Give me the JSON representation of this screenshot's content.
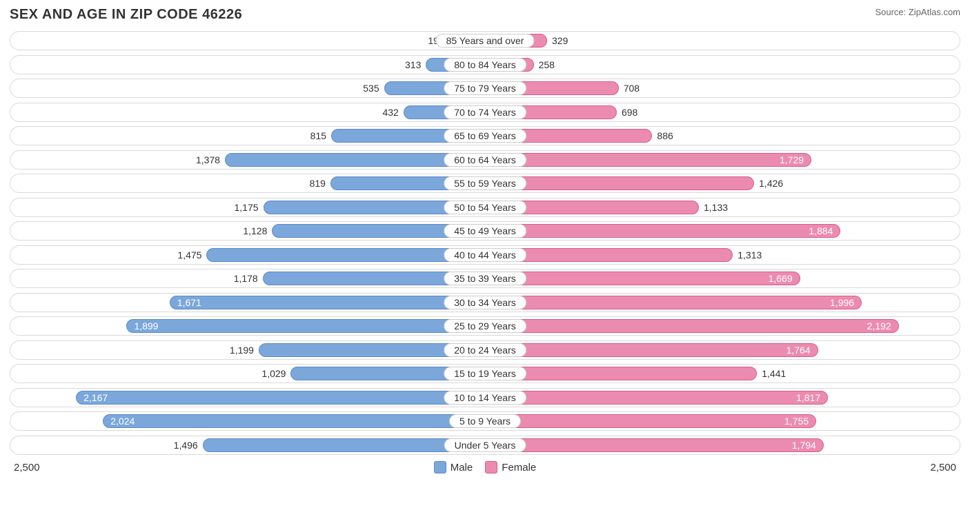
{
  "title": "SEX AND AGE IN ZIP CODE 46226",
  "source": "Source: ZipAtlas.com",
  "chart": {
    "type": "population-pyramid",
    "max_value": 2500,
    "axis_label_left": "2,500",
    "axis_label_right": "2,500",
    "male_color": "#7ba7db",
    "male_border": "#5b8bc9",
    "female_color": "#ec8bb0",
    "female_border": "#d95a8a",
    "row_border_color": "#d9d9d9",
    "background_color": "#ffffff",
    "label_fontsize": 14,
    "inside_threshold": 1600,
    "legend": {
      "male_label": "Male",
      "female_label": "Female"
    },
    "rows": [
      {
        "age": "85 Years and over",
        "male": 191,
        "male_label": "191",
        "female": 329,
        "female_label": "329"
      },
      {
        "age": "80 to 84 Years",
        "male": 313,
        "male_label": "313",
        "female": 258,
        "female_label": "258"
      },
      {
        "age": "75 to 79 Years",
        "male": 535,
        "male_label": "535",
        "female": 708,
        "female_label": "708"
      },
      {
        "age": "70 to 74 Years",
        "male": 432,
        "male_label": "432",
        "female": 698,
        "female_label": "698"
      },
      {
        "age": "65 to 69 Years",
        "male": 815,
        "male_label": "815",
        "female": 886,
        "female_label": "886"
      },
      {
        "age": "60 to 64 Years",
        "male": 1378,
        "male_label": "1,378",
        "female": 1729,
        "female_label": "1,729"
      },
      {
        "age": "55 to 59 Years",
        "male": 819,
        "male_label": "819",
        "female": 1426,
        "female_label": "1,426"
      },
      {
        "age": "50 to 54 Years",
        "male": 1175,
        "male_label": "1,175",
        "female": 1133,
        "female_label": "1,133"
      },
      {
        "age": "45 to 49 Years",
        "male": 1128,
        "male_label": "1,128",
        "female": 1884,
        "female_label": "1,884"
      },
      {
        "age": "40 to 44 Years",
        "male": 1475,
        "male_label": "1,475",
        "female": 1313,
        "female_label": "1,313"
      },
      {
        "age": "35 to 39 Years",
        "male": 1178,
        "male_label": "1,178",
        "female": 1669,
        "female_label": "1,669"
      },
      {
        "age": "30 to 34 Years",
        "male": 1671,
        "male_label": "1,671",
        "female": 1996,
        "female_label": "1,996"
      },
      {
        "age": "25 to 29 Years",
        "male": 1899,
        "male_label": "1,899",
        "female": 2192,
        "female_label": "2,192"
      },
      {
        "age": "20 to 24 Years",
        "male": 1199,
        "male_label": "1,199",
        "female": 1764,
        "female_label": "1,764"
      },
      {
        "age": "15 to 19 Years",
        "male": 1029,
        "male_label": "1,029",
        "female": 1441,
        "female_label": "1,441"
      },
      {
        "age": "10 to 14 Years",
        "male": 2167,
        "male_label": "2,167",
        "female": 1817,
        "female_label": "1,817"
      },
      {
        "age": "5 to 9 Years",
        "male": 2024,
        "male_label": "2,024",
        "female": 1755,
        "female_label": "1,755"
      },
      {
        "age": "Under 5 Years",
        "male": 1496,
        "male_label": "1,496",
        "female": 1794,
        "female_label": "1,794"
      }
    ]
  }
}
